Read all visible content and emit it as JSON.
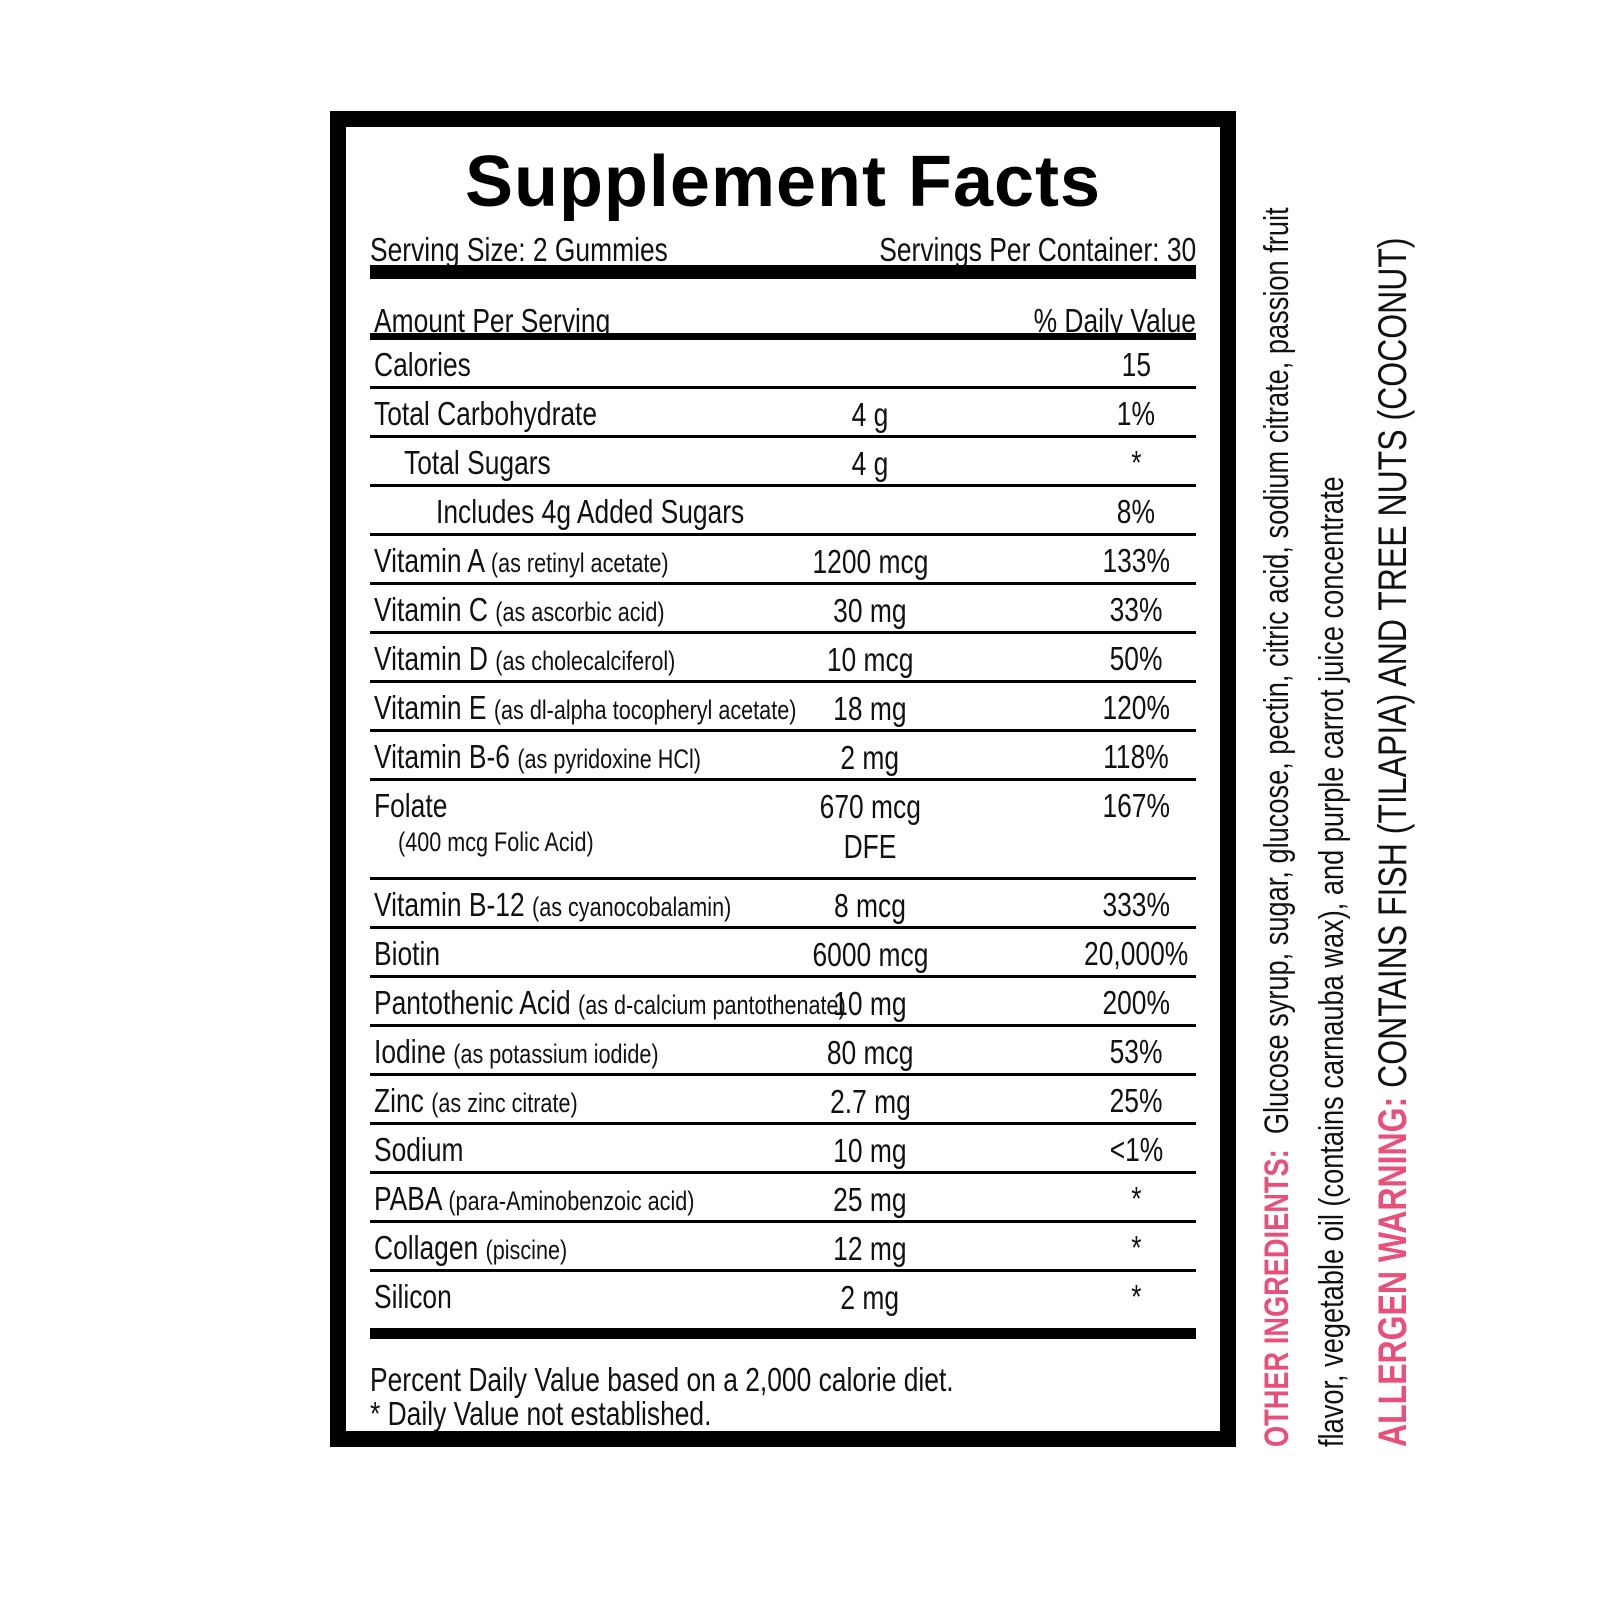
{
  "title": "Supplement Facts",
  "serving_size": "Serving Size: 2 Gummies",
  "servings_per_container": "Servings Per Container: 30",
  "amount_per_serving": "Amount Per Serving",
  "daily_value_header": "% Daily Value",
  "rows": [
    {
      "name": "Calories",
      "detail": "",
      "amount": "",
      "dv": "15",
      "indent": 0
    },
    {
      "name": "Total Carbohydrate",
      "detail": "",
      "amount": "4 g",
      "dv": "1%",
      "indent": 0
    },
    {
      "name": "Total Sugars",
      "detail": "",
      "amount": "4 g",
      "dv": "*",
      "indent": 1
    },
    {
      "name": "Includes 4g Added Sugars",
      "detail": "",
      "amount": "",
      "dv": "8%",
      "indent": 2
    },
    {
      "name": "Vitamin A",
      "detail": "(as retinyl acetate)",
      "amount": "1200 mcg",
      "dv": "133%",
      "indent": 0
    },
    {
      "name": "Vitamin C",
      "detail": "(as ascorbic acid)",
      "amount": "30 mg",
      "dv": "33%",
      "indent": 0
    },
    {
      "name": "Vitamin D",
      "detail": "(as cholecalciferol)",
      "amount": "10 mcg",
      "dv": "50%",
      "indent": 0
    },
    {
      "name": "Vitamin E",
      "detail": "(as dl-alpha tocopheryl acetate)",
      "amount": "18 mg",
      "dv": "120%",
      "indent": 0
    },
    {
      "name": "Vitamin B-6",
      "detail": "(as pyridoxine HCl)",
      "amount": "2 mg",
      "dv": "118%",
      "indent": 0
    },
    {
      "name": "Folate",
      "detail": "",
      "sub": "(400 mcg Folic Acid)",
      "amount": "670 mcg",
      "amount2": "DFE",
      "dv": "167%",
      "indent": 0,
      "tall": true
    },
    {
      "name": "Vitamin B-12",
      "detail": "(as cyanocobalamin)",
      "amount": "8 mcg",
      "dv": "333%",
      "indent": 0
    },
    {
      "name": "Biotin",
      "detail": "",
      "amount": "6000 mcg",
      "dv": "20,000%",
      "indent": 0
    },
    {
      "name": "Pantothenic Acid",
      "detail": "(as d-calcium pantothenate)",
      "amount": "10 mg",
      "dv": "200%",
      "indent": 0
    },
    {
      "name": "Iodine",
      "detail": "(as potassium iodide)",
      "amount": "80 mcg",
      "dv": "53%",
      "indent": 0
    },
    {
      "name": "Zinc",
      "detail": "(as zinc citrate)",
      "amount": "2.7 mg",
      "dv": "25%",
      "indent": 0
    },
    {
      "name": "Sodium",
      "detail": "",
      "amount": "10 mg",
      "dv": "<1%",
      "indent": 0
    },
    {
      "name": "PABA",
      "detail": "(para-Aminobenzoic acid)",
      "amount": "25 mg",
      "dv": "*",
      "indent": 0
    },
    {
      "name": "Collagen",
      "detail": "(piscine)",
      "amount": "12 mg",
      "dv": "*",
      "indent": 0
    },
    {
      "name": "Silicon",
      "detail": "",
      "amount": "2 mg",
      "dv": "*",
      "indent": 0
    }
  ],
  "footnote_1": "Percent Daily Value based on a 2,000 calorie diet.",
  "footnote_2": "* Daily Value not established.",
  "other_ingredients": {
    "label": "OTHER INGREDIENTS:",
    "line1": "Glucose syrup, sugar, glucose, pectin, citric acid, sodium citrate, passion fruit",
    "line2": "flavor, vegetable oil (contains carnauba wax), and purple carrot juice concentrate"
  },
  "allergen": {
    "label": "ALLERGEN WARNING:",
    "text": "CONTAINS FISH (TILAPIA) AND TREE NUTS (COCONUT)"
  },
  "colors": {
    "accent": "#e8507a",
    "border": "#000000"
  }
}
